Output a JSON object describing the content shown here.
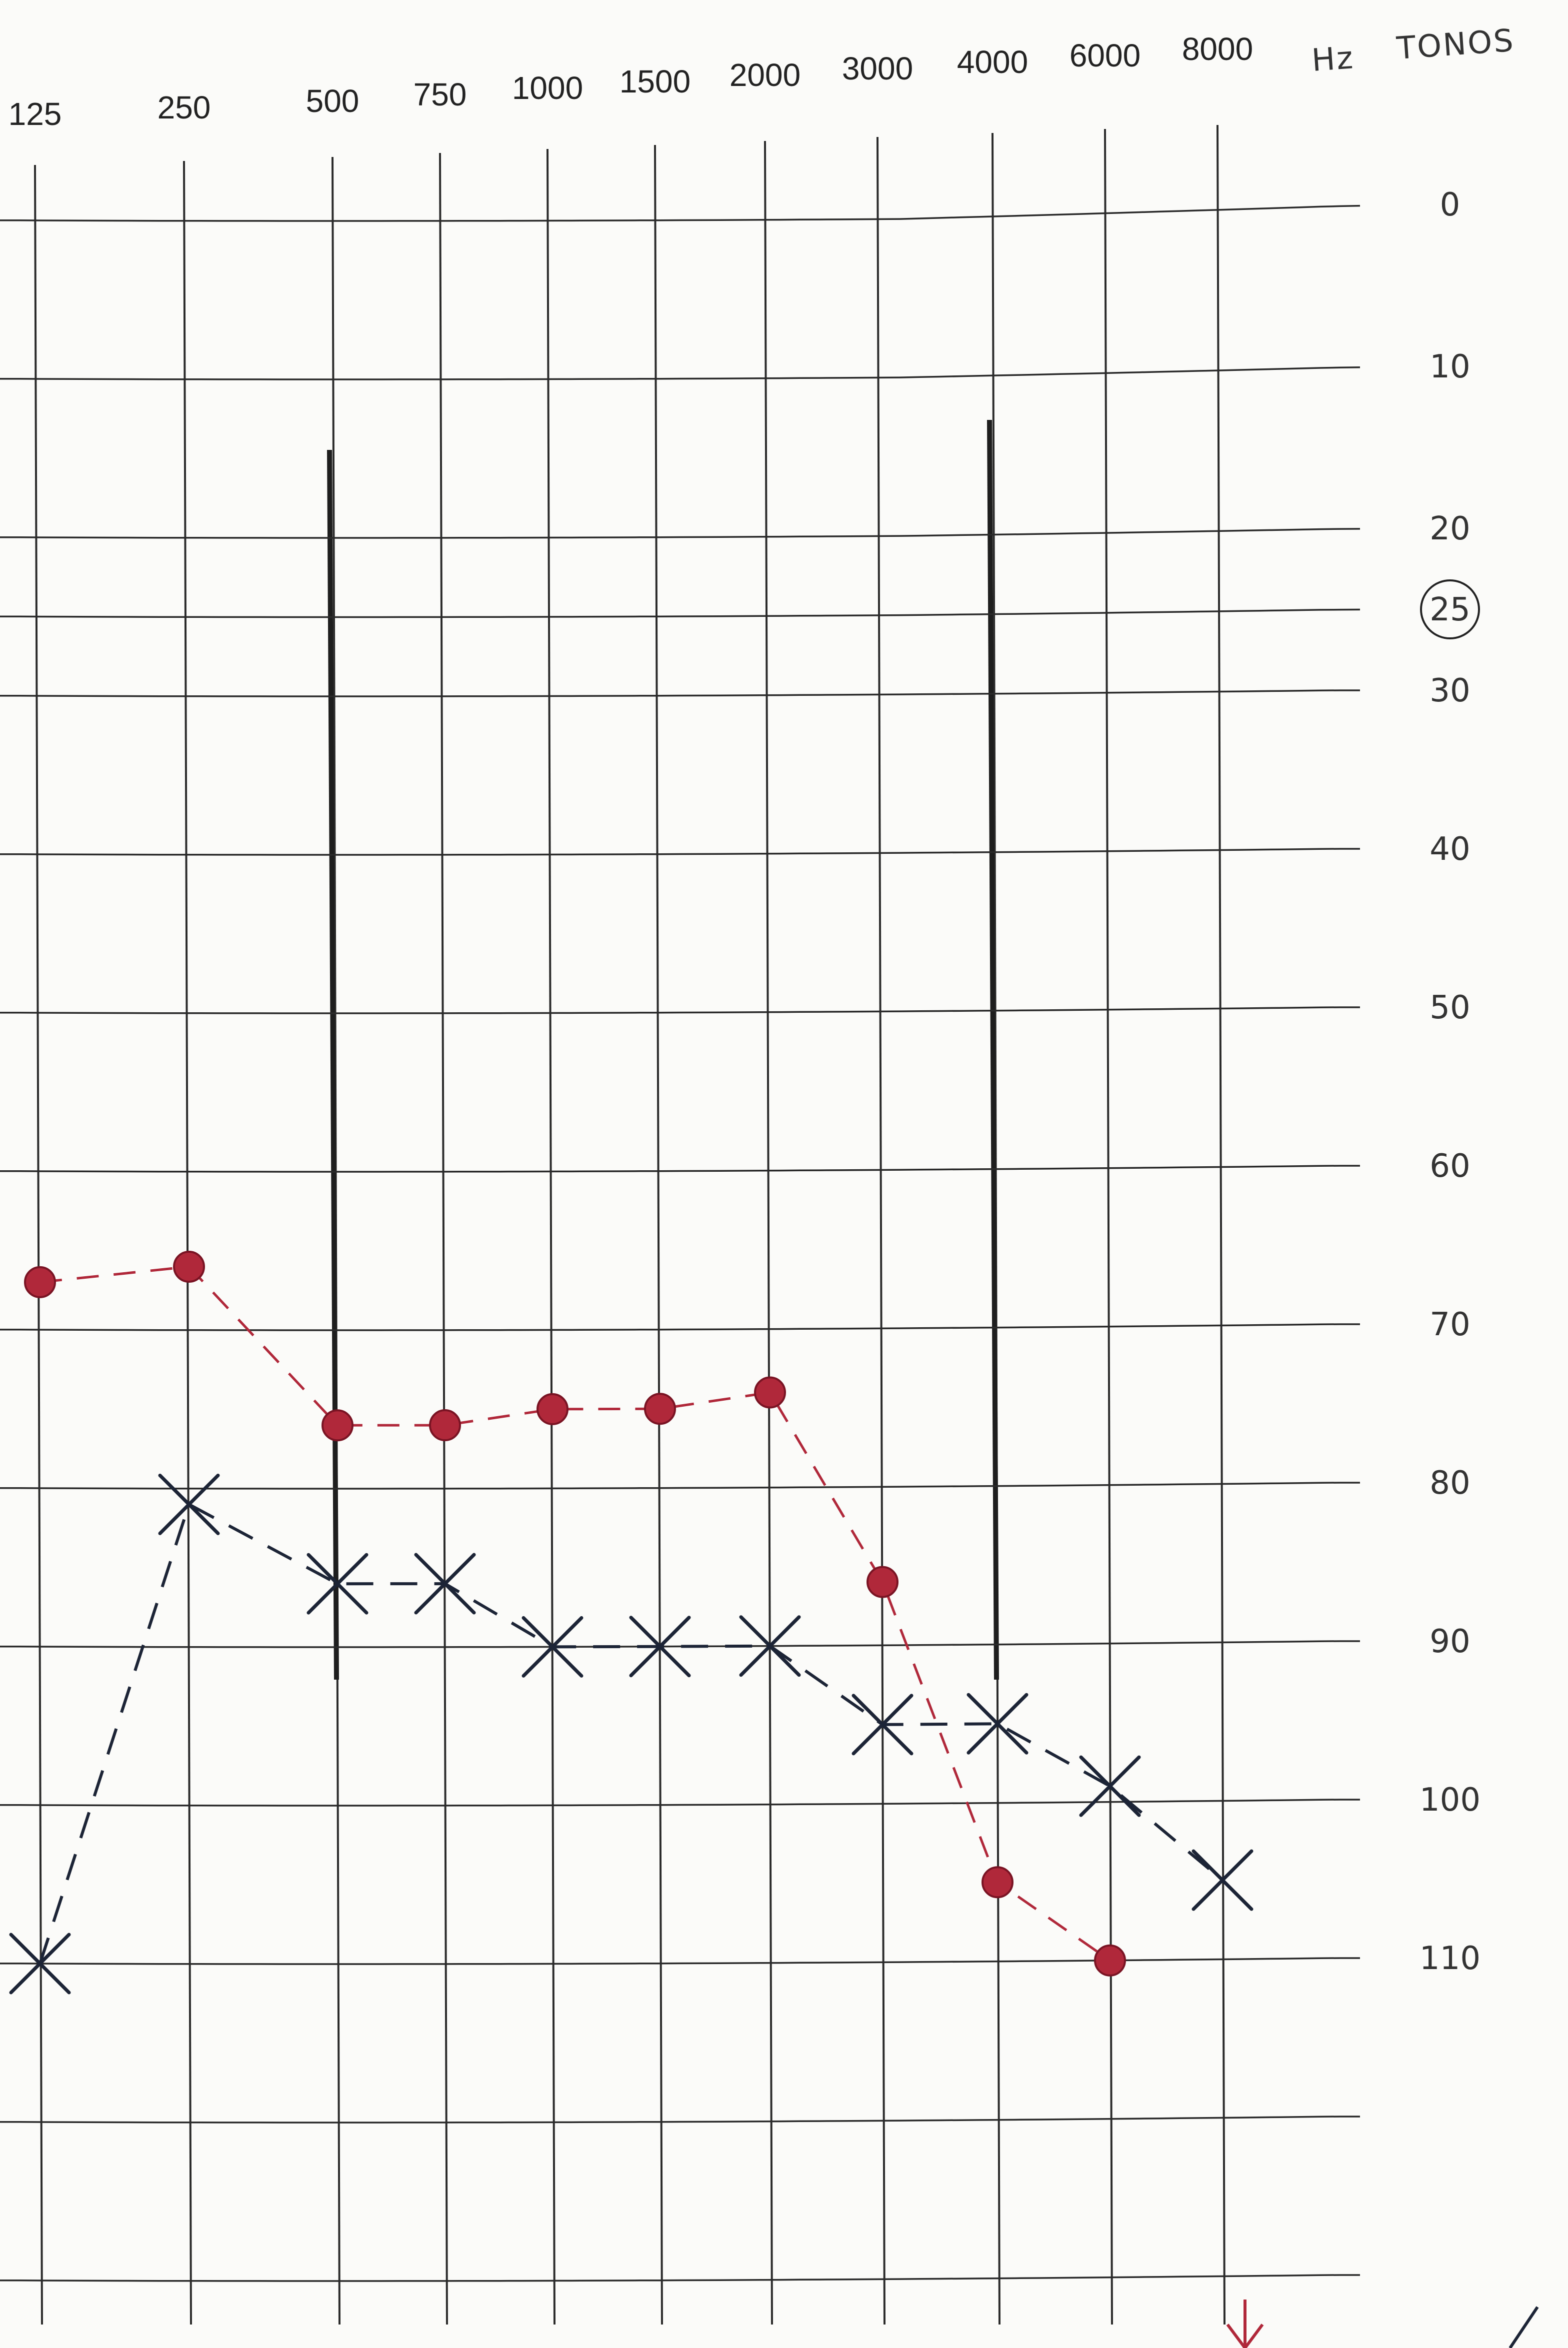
{
  "chart_data": {
    "type": "line",
    "unit_label": "Hz",
    "title_label": "TONOS",
    "categories": [
      "125",
      "250",
      "500",
      "750",
      "1000",
      "1500",
      "2000",
      "3000",
      "4000",
      "6000",
      "8000"
    ],
    "y_ticks": [
      "0",
      "10",
      "20",
      "25",
      "30",
      "40",
      "50",
      "60",
      "70",
      "80",
      "90",
      "100",
      "110"
    ],
    "circled_tick": "25",
    "ylim": [
      -10,
      130
    ],
    "y_reversed": true,
    "grid": true,
    "thick_lines_at": [
      "500",
      "4000"
    ],
    "series": [
      {
        "marker": "dot",
        "color": "#b0283a",
        "line_style": "dashed",
        "values": [
          67,
          66,
          76,
          76,
          75,
          75,
          74,
          86,
          105,
          110,
          null
        ]
      },
      {
        "marker": "x",
        "color": "#1c2436",
        "line_style": "dashed",
        "values": [
          110,
          81,
          86,
          86,
          90,
          90,
          90,
          95,
          95,
          99,
          105
        ]
      }
    ]
  }
}
